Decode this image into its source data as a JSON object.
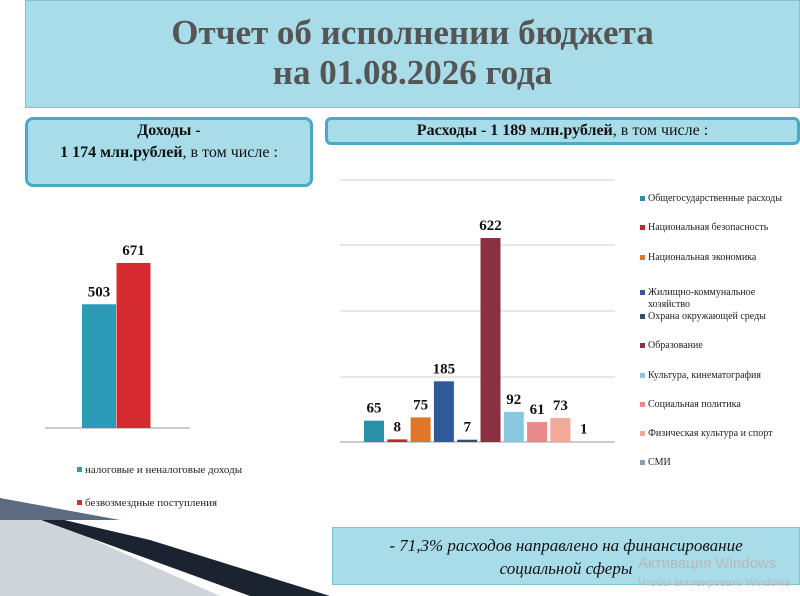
{
  "header": {
    "title_line1": "Отчет об исполнении бюджета",
    "title_line2": "на 01.08.2026 года"
  },
  "income_box": {
    "line1": "Доходы  -",
    "amount": "1 174 млн.рублей",
    "rest": ", в том числе :"
  },
  "expense_box": {
    "lead": "Расходы  -  1 189 млн.рублей",
    "rest": ", в том числе :"
  },
  "chart_data": [
    {
      "type": "bar",
      "categories": [
        "налоговые и неналоговые доходы",
        "безвозмездные поступления"
      ],
      "values": [
        503,
        671
      ],
      "colors": [
        "#2b9bb8",
        "#d42a30"
      ],
      "legend": true
    },
    {
      "type": "bar",
      "categories": [
        "Общегосударственные расходы",
        "Национальная безопасность",
        "Национальная экономика",
        "Жилищно-коммунальное хозяйство",
        "Охрана окружающей среды",
        "Образование",
        "Культура, кинематография",
        "Социальная политика",
        "Физическая культура и спорт",
        "СМИ"
      ],
      "values": [
        65,
        8,
        75,
        185,
        7,
        622,
        92,
        61,
        73,
        1
      ],
      "colors": [
        "#2a8fa8",
        "#c0282a",
        "#e0762a",
        "#2e5a9a",
        "#3a4a6a",
        "#8a3040",
        "#8ac8e0",
        "#e88a8a",
        "#f4a89a",
        "#8aa0b0"
      ],
      "legend": true
    }
  ],
  "note": {
    "line1": "- 71,3% расходов направлено на финансирование",
    "line2": "социальной сферы"
  },
  "watermark": {
    "line1": "Активация Windows",
    "line2": "Чтобы активировать Windows"
  }
}
